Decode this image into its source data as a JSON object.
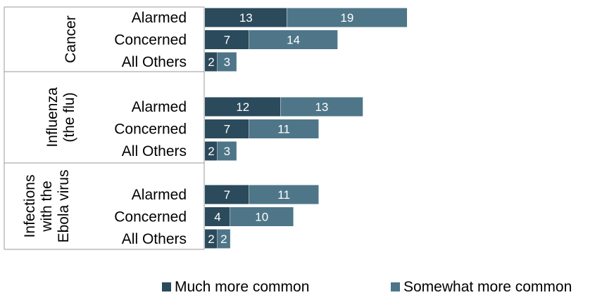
{
  "colors": {
    "much": "#2b4a5c",
    "somewhat": "#4e7688",
    "gridline": "#9a9a9a"
  },
  "chart_data": {
    "type": "bar",
    "orientation": "horizontal",
    "stacked": true,
    "xlim": [
      0,
      50
    ],
    "groups": [
      {
        "name": "Cancer",
        "lines": [
          "Cancer"
        ],
        "rows": [
          {
            "category": "Alarmed",
            "values": [
              13,
              19
            ]
          },
          {
            "category": "Concerned",
            "values": [
              7,
              14
            ]
          },
          {
            "category": "All Others",
            "values": [
              2,
              3
            ]
          }
        ]
      },
      {
        "name": "Influenza (the flu)",
        "lines": [
          "Influenza",
          "(the flu)"
        ],
        "rows": [
          {
            "category": "Alarmed",
            "values": [
              12,
              13
            ]
          },
          {
            "category": "Concerned",
            "values": [
              7,
              11
            ]
          },
          {
            "category": "All Others",
            "values": [
              2,
              3
            ]
          }
        ]
      },
      {
        "name": "Infections with the Ebola virus",
        "lines": [
          "Infections",
          "with the",
          "Ebola virus"
        ],
        "rows": [
          {
            "category": "Alarmed",
            "values": [
              7,
              11
            ]
          },
          {
            "category": "Concerned",
            "values": [
              4,
              10
            ]
          },
          {
            "category": "All Others",
            "values": [
              2,
              2
            ]
          }
        ]
      }
    ],
    "series": [
      {
        "name": "Much more common",
        "color": "#2b4a5c"
      },
      {
        "name": "Somewhat more common",
        "color": "#4e7688"
      }
    ],
    "legend_position": "bottom"
  }
}
